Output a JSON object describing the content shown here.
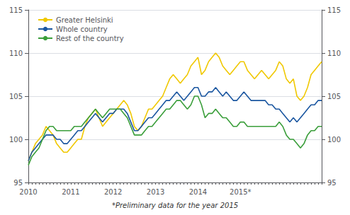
{
  "chart_data": {
    "type": "line",
    "annotations": [
      "*Preliminary data for the year 2015"
    ],
    "categories": [
      "2010",
      null,
      null,
      null,
      null,
      null,
      null,
      null,
      null,
      null,
      null,
      null,
      "2011",
      null,
      null,
      null,
      null,
      null,
      null,
      null,
      null,
      null,
      null,
      null,
      "2012",
      null,
      null,
      null,
      null,
      null,
      null,
      null,
      null,
      null,
      null,
      null,
      "2013",
      null,
      null,
      null,
      null,
      null,
      null,
      null,
      null,
      null,
      null,
      null,
      "2014",
      null,
      null,
      null,
      null,
      null,
      null,
      null,
      null,
      null,
      null,
      null,
      "2015*",
      null,
      null,
      null,
      null,
      null,
      null,
      null,
      null,
      null,
      null,
      null,
      null,
      null,
      null,
      null,
      null,
      null,
      null,
      null,
      null,
      null,
      null,
      null
    ],
    "series": [
      {
        "name": "Greater Helsinki",
        "color": "#f0c800",
        "values": [
          97.5,
          98.5,
          99.5,
          100.0,
          100.5,
          101.5,
          101.0,
          100.5,
          99.5,
          99.0,
          98.5,
          98.5,
          99.0,
          99.5,
          100.0,
          100.0,
          101.5,
          102.5,
          103.0,
          103.5,
          102.5,
          101.5,
          102.0,
          102.5,
          103.0,
          103.5,
          104.0,
          104.5,
          104.0,
          103.0,
          101.5,
          101.0,
          101.5,
          102.5,
          103.5,
          103.5,
          104.0,
          104.5,
          105.0,
          106.0,
          107.0,
          107.5,
          107.0,
          106.5,
          107.0,
          107.5,
          108.5,
          109.0,
          109.5,
          107.5,
          108.0,
          109.0,
          109.5,
          110.0,
          109.5,
          108.5,
          108.0,
          107.5,
          108.0,
          108.5,
          109.0,
          109.0,
          108.0,
          107.5,
          107.0,
          107.5,
          108.0,
          107.5,
          107.0,
          107.5,
          108.0,
          109.0,
          108.5,
          107.0,
          106.5,
          107.0,
          105.0,
          104.5,
          105.0,
          106.0,
          107.5,
          108.0,
          108.5,
          109.0
        ]
      },
      {
        "name": "Whole country",
        "color": "#1a56a0",
        "values": [
          97.5,
          98.5,
          99.0,
          99.5,
          100.0,
          100.5,
          100.5,
          100.5,
          100.0,
          100.0,
          99.5,
          99.5,
          100.0,
          100.5,
          101.0,
          101.0,
          101.5,
          102.0,
          102.5,
          103.0,
          102.5,
          102.0,
          102.5,
          103.0,
          103.0,
          103.5,
          103.5,
          103.5,
          103.0,
          102.0,
          101.0,
          101.0,
          101.5,
          102.0,
          102.5,
          102.5,
          103.0,
          103.5,
          104.0,
          104.5,
          104.5,
          105.0,
          105.5,
          105.0,
          104.5,
          105.0,
          105.5,
          106.0,
          106.0,
          105.0,
          105.0,
          105.5,
          105.5,
          106.0,
          105.5,
          105.0,
          105.5,
          105.0,
          104.5,
          104.5,
          105.0,
          105.5,
          105.0,
          104.5,
          104.5,
          104.5,
          104.5,
          104.5,
          104.0,
          104.0,
          103.5,
          103.5,
          103.0,
          102.5,
          102.0,
          102.5,
          102.0,
          102.5,
          103.0,
          103.5,
          104.0,
          104.0,
          104.5,
          104.5
        ]
      },
      {
        "name": "Rest of the country",
        "color": "#3a9e3a",
        "values": [
          97.0,
          98.0,
          98.5,
          99.0,
          100.0,
          101.0,
          101.5,
          101.5,
          101.0,
          101.0,
          101.0,
          101.0,
          101.0,
          101.5,
          101.5,
          101.5,
          102.0,
          102.5,
          103.0,
          103.5,
          103.0,
          102.5,
          103.0,
          103.5,
          103.5,
          103.5,
          103.5,
          103.0,
          102.5,
          101.5,
          100.5,
          100.5,
          100.5,
          101.0,
          101.5,
          101.5,
          102.0,
          102.5,
          103.0,
          103.5,
          103.5,
          104.0,
          104.5,
          104.5,
          104.0,
          103.5,
          104.0,
          105.0,
          105.0,
          104.0,
          102.5,
          103.0,
          103.0,
          103.5,
          103.0,
          102.5,
          102.5,
          102.0,
          101.5,
          101.5,
          102.0,
          102.0,
          101.5,
          101.5,
          101.5,
          101.5,
          101.5,
          101.5,
          101.5,
          101.5,
          101.5,
          102.0,
          101.5,
          100.5,
          100.0,
          100.0,
          99.5,
          99.0,
          99.5,
          100.5,
          101.0,
          101.0,
          101.5,
          101.5
        ]
      }
    ],
    "ylim": [
      95,
      115
    ],
    "yticks": [
      95,
      100,
      105,
      110,
      115
    ],
    "y2lim": [
      95,
      115
    ],
    "y2ticks": [
      95,
      100,
      105,
      110,
      115
    ],
    "grid": true,
    "legend": "upper left"
  }
}
